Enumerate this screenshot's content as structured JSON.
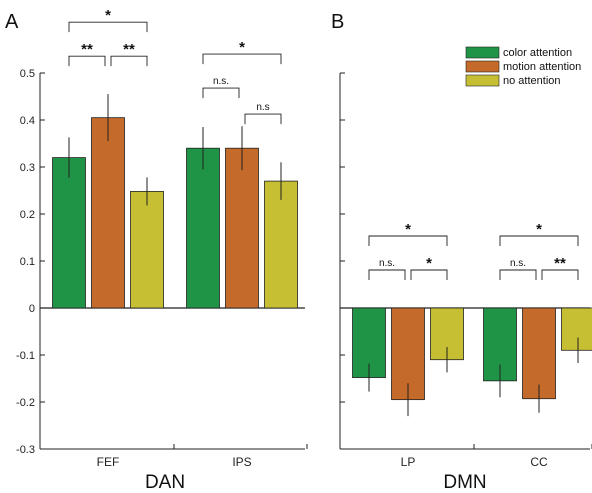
{
  "colors": {
    "color_attention": "#1f9446",
    "motion_attention": "#c46a2b",
    "no_attention": "#c6bf33"
  },
  "legend": {
    "items": [
      {
        "key": "color_attention",
        "label": "color attention"
      },
      {
        "key": "motion_attention",
        "label": "motion attention"
      },
      {
        "key": "no_attention",
        "label": "no attention"
      }
    ]
  },
  "chart_data": [
    {
      "panel": "A",
      "type": "bar",
      "group_label": "DAN",
      "categories": [
        "FEF",
        "IPS"
      ],
      "ylim": [
        -0.3,
        0.5
      ],
      "yticks": [
        {
          "value": 0.5,
          "label": "0.5"
        },
        {
          "value": 0.4,
          "label": "0.4"
        },
        {
          "value": 0.3,
          "label": "0.3"
        },
        {
          "value": 0.2,
          "label": "0.2"
        },
        {
          "value": 0.1,
          "label": "0.1"
        },
        {
          "value": 0,
          "label": "0"
        },
        {
          "value": -0.1,
          "label": "-0.1"
        },
        {
          "value": -0.2,
          "label": "-0.2"
        },
        {
          "value": -0.3,
          "label": "-0.3"
        }
      ],
      "series": [
        {
          "key": "color_attention",
          "values": [
            0.32,
            0.34
          ],
          "errors": [
            0.043,
            0.045
          ]
        },
        {
          "key": "motion_attention",
          "values": [
            0.405,
            0.34
          ],
          "errors": [
            0.05,
            0.047
          ]
        },
        {
          "key": "no_attention",
          "values": [
            0.248,
            0.27
          ],
          "errors": [
            0.03,
            0.04
          ]
        }
      ],
      "significance": [
        {
          "category": 0,
          "from": 0,
          "to": 2,
          "label": "*",
          "level": 2
        },
        {
          "category": 0,
          "from": 0,
          "to": 1,
          "label": "**",
          "level": 1
        },
        {
          "category": 0,
          "from": 1,
          "to": 2,
          "label": "**",
          "level": 1
        },
        {
          "category": 1,
          "from": 0,
          "to": 2,
          "label": "*",
          "level": 2
        },
        {
          "category": 1,
          "from": 0,
          "to": 1,
          "label": "n.s.",
          "level": 1
        },
        {
          "category": 1,
          "from": 1,
          "to": 2,
          "label": "n.s",
          "level": 0
        }
      ]
    },
    {
      "panel": "B",
      "type": "bar",
      "group_label": "DMN",
      "categories": [
        "LP",
        "CC"
      ],
      "ylim": [
        -0.3,
        0.5
      ],
      "yticks": [
        {
          "value": 0.5,
          "label": ""
        },
        {
          "value": 0.4,
          "label": ""
        },
        {
          "value": 0.3,
          "label": ""
        },
        {
          "value": 0.2,
          "label": ""
        },
        {
          "value": 0.1,
          "label": ""
        },
        {
          "value": 0,
          "label": ""
        },
        {
          "value": -0.1,
          "label": ""
        },
        {
          "value": -0.2,
          "label": ""
        },
        {
          "value": -0.3,
          "label": ""
        }
      ],
      "series": [
        {
          "key": "color_attention",
          "values": [
            -0.148,
            -0.155
          ],
          "errors": [
            0.03,
            0.035
          ]
        },
        {
          "key": "motion_attention",
          "values": [
            -0.195,
            -0.193
          ],
          "errors": [
            0.035,
            0.03
          ]
        },
        {
          "key": "no_attention",
          "values": [
            -0.11,
            -0.09
          ],
          "errors": [
            0.027,
            0.027
          ]
        }
      ],
      "significance": [
        {
          "category": 0,
          "from": 0,
          "to": 2,
          "label": "*",
          "level": 2
        },
        {
          "category": 0,
          "from": 0,
          "to": 1,
          "label": "n.s.",
          "level": 1
        },
        {
          "category": 0,
          "from": 1,
          "to": 2,
          "label": "*",
          "level": 1
        },
        {
          "category": 1,
          "from": 0,
          "to": 2,
          "label": "*",
          "level": 2
        },
        {
          "category": 1,
          "from": 0,
          "to": 1,
          "label": "n.s.",
          "level": 1
        },
        {
          "category": 1,
          "from": 1,
          "to": 2,
          "label": "**",
          "level": 1
        }
      ]
    }
  ]
}
